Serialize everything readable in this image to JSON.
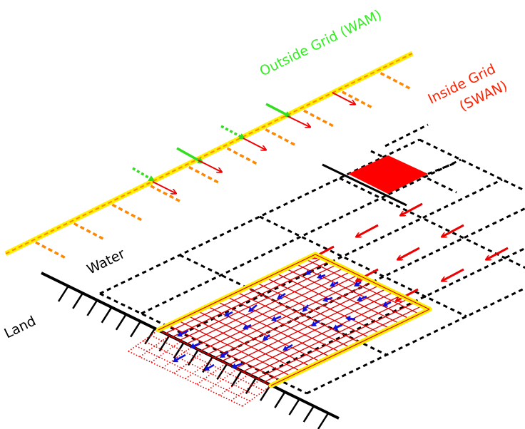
{
  "labels": {
    "outside_grid": "Outside Grid (WAM)",
    "inside_grid_line1": "Inside Grid",
    "inside_grid_line2": "(SWAN)",
    "water": "Water",
    "land": "Land"
  },
  "colors": {
    "outside_label": "#33ee22",
    "inside_label": "#ff2200",
    "boundary_yellow": "#ffee00",
    "boundary_orange": "#ff8800",
    "inner_arrow": "#1111dd",
    "grid_red": "#dd0000",
    "dashed_grid": "#000000",
    "cell_fill": "#ff0000"
  }
}
